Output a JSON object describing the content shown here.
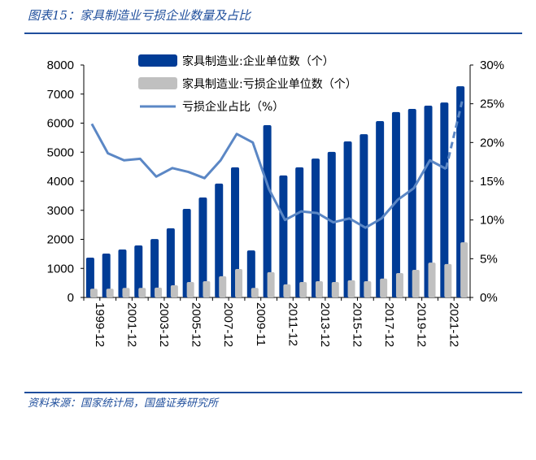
{
  "title": "图表15：家具制造业亏损企业数量及占比",
  "source": "资料来源：国家统计局，国盛证券研究所",
  "colors": {
    "accent": "#1f4e9c",
    "total_bar": "#003c96",
    "loss_bar": "#c0c0c0",
    "ratio_line": "#5b87c5"
  },
  "chart_data": {
    "type": "bar",
    "title": "",
    "categories": [
      "1999-12",
      "2000-12",
      "2001-12",
      "2002-12",
      "2003-12",
      "2004-12",
      "2005-12",
      "2006-12",
      "2007-12",
      "2008-12",
      "2009-11",
      "2010-12",
      "2011-12",
      "2012-12",
      "2013-12",
      "2014-12",
      "2015-12",
      "2016-12",
      "2017-12",
      "2018-12",
      "2019-12",
      "2020-12",
      "2021-12",
      "2022-12"
    ],
    "x_tick_labels": [
      "1999-12",
      "2001-12",
      "2003-12",
      "2005-12",
      "2007-12",
      "2009-11",
      "2011-12",
      "2013-12",
      "2015-12",
      "2017-12",
      "2019-12",
      "2021-12"
    ],
    "series": [
      {
        "name": "家具制造业:企业单位数（个）",
        "type": "bar",
        "axis": "left",
        "values": [
          1370,
          1510,
          1650,
          1790,
          2010,
          2380,
          3050,
          3440,
          3920,
          4480,
          1620,
          5930,
          4200,
          4480,
          4780,
          5010,
          5370,
          5620,
          6070,
          6380,
          6490,
          6600,
          6710,
          7270
        ]
      },
      {
        "name": "家具制造业:亏损企业单位数（个）",
        "type": "bar",
        "axis": "left",
        "values": [
          300,
          300,
          330,
          330,
          340,
          420,
          530,
          560,
          730,
          980,
          330,
          870,
          450,
          530,
          560,
          530,
          590,
          560,
          650,
          840,
          950,
          1200,
          1150,
          1900
        ]
      },
      {
        "name": "亏损企业占比（%）",
        "type": "line",
        "axis": "right",
        "dashed_last_segment": true,
        "values": [
          22.4,
          18.6,
          17.7,
          17.9,
          15.6,
          16.7,
          16.2,
          15.4,
          17.7,
          21.1,
          20.0,
          14.0,
          10.0,
          11.1,
          10.9,
          9.7,
          10.2,
          9.0,
          10.2,
          12.6,
          14.1,
          17.7,
          16.6,
          25.3
        ]
      }
    ],
    "y_left": {
      "ylim": [
        0,
        8000
      ],
      "ticks": [
        "0",
        "1000",
        "2000",
        "3000",
        "4000",
        "5000",
        "6000",
        "7000",
        "8000"
      ]
    },
    "y_right": {
      "ylim": [
        0,
        30
      ],
      "ticks": [
        "0%",
        "5%",
        "10%",
        "15%",
        "20%",
        "25%",
        "30%"
      ]
    },
    "grid": false,
    "legend": "top-center"
  }
}
